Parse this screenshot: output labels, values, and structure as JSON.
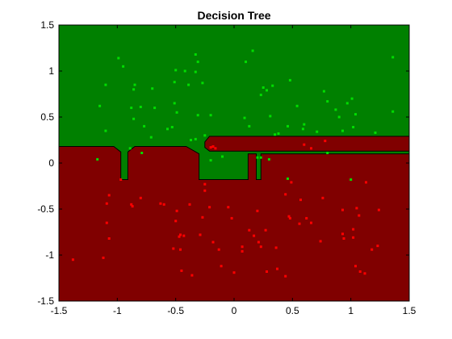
{
  "chart_data": {
    "type": "scatter",
    "title": "Decision Tree",
    "xlabel": "",
    "ylabel": "",
    "xlim": [
      -1.5,
      1.5
    ],
    "ylim": [
      -1.5,
      1.5
    ],
    "xticks": [
      -1.5,
      -1,
      -0.5,
      0,
      0.5,
      1,
      1.5
    ],
    "yticks": [
      -1.5,
      -1,
      -0.5,
      0,
      0.5,
      1,
      1.5
    ],
    "xtick_labels": [
      "-1.5",
      "-1",
      "-0.5",
      "0",
      "0.5",
      "1",
      "1.5"
    ],
    "ytick_labels": [
      "-1.5",
      "-1",
      "-0.5",
      "0",
      "0.5",
      "1",
      "1.5"
    ],
    "grid": false,
    "legend": false,
    "regions": {
      "class_a_color": "#008000",
      "class_b_color": "#800000",
      "boundary_color": "#000000",
      "class_b_region_polygon": [
        [
          -1.5,
          0.18
        ],
        [
          -1.03,
          0.18
        ],
        [
          -0.97,
          0.12
        ],
        [
          -0.97,
          -0.18
        ],
        [
          -0.91,
          -0.18
        ],
        [
          -0.91,
          0.12
        ],
        [
          -0.85,
          0.18
        ],
        [
          -0.41,
          0.18
        ],
        [
          -0.3,
          0.1
        ],
        [
          -0.3,
          -0.18
        ],
        [
          0.12,
          -0.18
        ],
        [
          0.12,
          0.1
        ],
        [
          0.19,
          0.1
        ],
        [
          0.19,
          -0.18
        ],
        [
          0.23,
          -0.18
        ],
        [
          0.23,
          0.1
        ],
        [
          1.5,
          0.1
        ],
        [
          1.5,
          -1.5
        ],
        [
          -1.5,
          -1.5
        ]
      ],
      "class_b_strip_polygon": [
        [
          -0.25,
          0.23
        ],
        [
          -0.21,
          0.29
        ],
        [
          1.5,
          0.29
        ],
        [
          1.5,
          0.13
        ],
        [
          -0.21,
          0.13
        ],
        [
          -0.25,
          0.17
        ]
      ]
    },
    "series": [
      {
        "color": "#00dd00",
        "points": [
          [
            -0.99,
            1.14
          ],
          [
            -0.95,
            1.05
          ],
          [
            -1.1,
            0.85
          ],
          [
            -0.85,
            0.85
          ],
          [
            -0.86,
            0.8
          ],
          [
            -0.7,
            0.81
          ],
          [
            -1.15,
            0.62
          ],
          [
            -0.88,
            0.6
          ],
          [
            -0.8,
            0.61
          ],
          [
            -0.68,
            0.6
          ],
          [
            -0.86,
            0.48
          ],
          [
            -0.77,
            0.4
          ],
          [
            -1.1,
            0.35
          ],
          [
            -0.71,
            0.28
          ],
          [
            -0.89,
            0.16
          ],
          [
            -0.79,
            0.11
          ],
          [
            -1.17,
            0.04
          ],
          [
            -0.5,
            1.01
          ],
          [
            -0.42,
            1.0
          ],
          [
            -0.33,
            1.18
          ],
          [
            -0.31,
            1.1
          ],
          [
            -0.33,
            0.99
          ],
          [
            -0.27,
            0.87
          ],
          [
            -0.39,
            0.85
          ],
          [
            -0.51,
            0.88
          ],
          [
            -0.51,
            0.65
          ],
          [
            -0.49,
            0.55
          ],
          [
            -0.53,
            0.39
          ],
          [
            -0.57,
            0.37
          ],
          [
            -0.31,
            0.52
          ],
          [
            -0.33,
            0.26
          ],
          [
            -0.37,
            0.25
          ],
          [
            -0.2,
            0.52
          ],
          [
            -0.25,
            0.3
          ],
          [
            -0.2,
            0.03
          ],
          [
            -0.1,
            0.07
          ],
          [
            0.1,
            1.1
          ],
          [
            0.16,
            1.22
          ],
          [
            0.09,
            0.49
          ],
          [
            0.13,
            0.4
          ],
          [
            0.2,
            0.06
          ],
          [
            0.25,
            0.82
          ],
          [
            0.28,
            0.79
          ],
          [
            0.33,
            0.84
          ],
          [
            0.23,
            0.74
          ],
          [
            0.31,
            0.51
          ],
          [
            0.35,
            0.31
          ],
          [
            0.38,
            0.32
          ],
          [
            0.46,
            0.4
          ],
          [
            0.48,
            0.9
          ],
          [
            0.54,
            0.62
          ],
          [
            0.6,
            0.42
          ],
          [
            0.59,
            0.37
          ],
          [
            0.71,
            0.34
          ],
          [
            0.77,
            0.78
          ],
          [
            0.8,
            0.67
          ],
          [
            0.87,
            0.58
          ],
          [
            0.9,
            0.5
          ],
          [
            0.97,
            0.65
          ],
          [
            1.01,
            0.7
          ],
          [
            1.04,
            0.53
          ],
          [
            1.02,
            0.39
          ],
          [
            0.93,
            0.35
          ],
          [
            1.36,
            1.15
          ],
          [
            1.36,
            0.56
          ],
          [
            1.21,
            0.33
          ],
          [
            0.8,
            0.11
          ],
          [
            1.0,
            -0.18
          ],
          [
            0.46,
            -0.17
          ],
          [
            0.3,
            0.04
          ],
          [
            0.23,
            0.06
          ]
        ]
      },
      {
        "color": "#ff0000",
        "points": [
          [
            -1.38,
            -1.05
          ],
          [
            -1.12,
            -1.03
          ],
          [
            -1.09,
            -0.44
          ],
          [
            -1.09,
            -0.65
          ],
          [
            -1.07,
            -0.82
          ],
          [
            -1.07,
            -0.35
          ],
          [
            -0.97,
            -0.18
          ],
          [
            -0.88,
            -0.45
          ],
          [
            -0.87,
            -0.47
          ],
          [
            -0.8,
            -0.38
          ],
          [
            -0.63,
            -0.44
          ],
          [
            -0.6,
            -0.45
          ],
          [
            -0.49,
            -0.52
          ],
          [
            -0.5,
            -0.63
          ],
          [
            -0.47,
            -0.8
          ],
          [
            -0.46,
            -0.78
          ],
          [
            -0.43,
            -0.79
          ],
          [
            -0.46,
            -0.94
          ],
          [
            -0.45,
            -1.17
          ],
          [
            -0.52,
            -0.93
          ],
          [
            -0.38,
            -0.45
          ],
          [
            -0.36,
            -1.22
          ],
          [
            -0.29,
            -0.78
          ],
          [
            -0.27,
            -0.59
          ],
          [
            -0.21,
            -0.48
          ],
          [
            -0.18,
            -0.86
          ],
          [
            -0.13,
            -0.94
          ],
          [
            -0.11,
            -1.12
          ],
          [
            -0.05,
            -0.48
          ],
          [
            -0.02,
            -0.6
          ],
          [
            0.0,
            -1.19
          ],
          [
            -0.16,
            0.16
          ],
          [
            -0.18,
            0.18
          ],
          [
            -0.2,
            0.17
          ],
          [
            -0.25,
            -0.23
          ],
          [
            -0.25,
            -0.3
          ],
          [
            0.07,
            -0.91
          ],
          [
            0.07,
            -0.96
          ],
          [
            0.13,
            -0.73
          ],
          [
            0.17,
            -0.79
          ],
          [
            0.21,
            -0.86
          ],
          [
            0.23,
            -0.91
          ],
          [
            0.2,
            -0.52
          ],
          [
            0.27,
            -0.73
          ],
          [
            0.28,
            -1.18
          ],
          [
            0.36,
            -0.92
          ],
          [
            0.37,
            -1.15
          ],
          [
            0.44,
            -1.23
          ],
          [
            0.44,
            -0.34
          ],
          [
            0.47,
            -0.58
          ],
          [
            0.49,
            -0.21
          ],
          [
            0.48,
            -0.6
          ],
          [
            0.56,
            -0.66
          ],
          [
            0.57,
            -0.4
          ],
          [
            0.62,
            -0.6
          ],
          [
            0.66,
            -0.65
          ],
          [
            0.76,
            -0.38
          ],
          [
            0.74,
            -0.85
          ],
          [
            0.78,
            0.24
          ],
          [
            0.93,
            -0.51
          ],
          [
            0.93,
            -0.77
          ],
          [
            0.94,
            -0.82
          ],
          [
            1.02,
            -0.81
          ],
          [
            1.04,
            -1.12
          ],
          [
            1.05,
            -0.49
          ],
          [
            1.07,
            -0.57
          ],
          [
            1.08,
            -1.18
          ],
          [
            1.13,
            -0.21
          ],
          [
            1.18,
            -0.94
          ],
          [
            1.24,
            -0.51
          ],
          [
            1.23,
            -0.9
          ],
          [
            1.12,
            -1.2
          ],
          [
            1.02,
            -0.72
          ],
          [
            0.66,
            0.16
          ],
          [
            0.6,
            0.2
          ]
        ]
      }
    ]
  }
}
